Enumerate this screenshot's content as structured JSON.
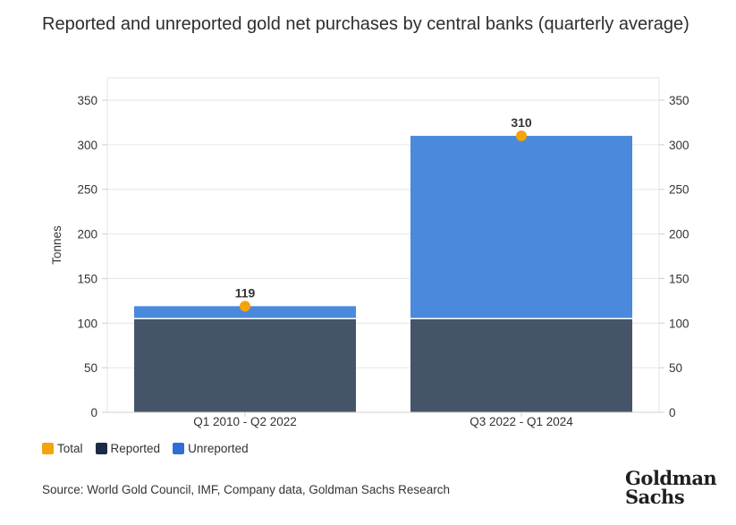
{
  "title": "Reported and unreported gold net purchases by central banks (quarterly average)",
  "source": "Source: World Gold Council, IMF, Company data, Goldman Sachs Research",
  "logo": {
    "line1": "Goldman",
    "line2": "Sachs"
  },
  "legend": [
    {
      "label": "Total",
      "color": "#f5a30a"
    },
    {
      "label": "Reported",
      "color": "#1c2b45"
    },
    {
      "label": "Unreported",
      "color": "#2f6fd4"
    }
  ],
  "chart_data": {
    "type": "bar",
    "stacked": true,
    "categories": [
      "Q1 2010 - Q2 2022",
      "Q3 2022 - Q1 2024"
    ],
    "series": [
      {
        "name": "Reported",
        "values": [
          105,
          105
        ],
        "color": "#465469"
      },
      {
        "name": "Unreported",
        "values": [
          14,
          205
        ],
        "color": "#4a89dc"
      }
    ],
    "total": {
      "name": "Total",
      "values": [
        119,
        310
      ],
      "color": "#f5a30a"
    },
    "data_labels": [
      "119",
      "310"
    ],
    "ylabel": "Tonnes",
    "ylim": [
      0,
      350
    ],
    "yticks": [
      "0",
      "50",
      "100",
      "150",
      "200",
      "250",
      "300",
      "350"
    ],
    "secondary_axis": true,
    "grid": true,
    "legend_position": "bottom-left"
  }
}
